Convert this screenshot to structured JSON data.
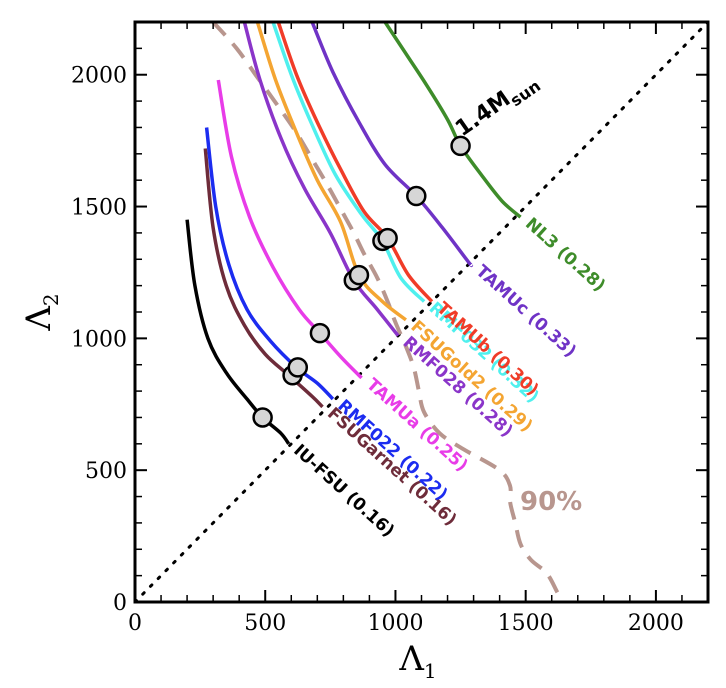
{
  "chart_data": {
    "type": "line",
    "xlabel": "Λ",
    "xlabel_sub": "1",
    "ylabel": "Λ",
    "ylabel_sub": "2",
    "xlim": [
      0,
      2200
    ],
    "ylim": [
      0,
      2200
    ],
    "x_ticks": [
      0,
      500,
      1000,
      1500,
      2000
    ],
    "y_ticks": [
      0,
      500,
      1000,
      1500,
      2000
    ],
    "annotation_mass": "1.4M",
    "annotation_mass_sub": "sun",
    "annotation_credible": "90%",
    "credible_color": "#b8968e",
    "diagonal": [
      [
        0,
        0
      ],
      [
        2200,
        2200
      ]
    ],
    "credible_region": [
      [
        300,
        2200
      ],
      [
        390,
        2100
      ],
      [
        470,
        1990
      ],
      [
        550,
        1880
      ],
      [
        620,
        1780
      ],
      [
        680,
        1680
      ],
      [
        740,
        1580
      ],
      [
        790,
        1490
      ],
      [
        840,
        1400
      ],
      [
        880,
        1320
      ],
      [
        930,
        1230
      ],
      [
        970,
        1140
      ],
      [
        1000,
        1060
      ],
      [
        1040,
        970
      ],
      [
        1070,
        890
      ],
      [
        1090,
        800
      ],
      [
        1110,
        720
      ],
      [
        1170,
        640
      ],
      [
        1260,
        580
      ],
      [
        1400,
        500
      ],
      [
        1440,
        440
      ],
      [
        1440,
        380
      ],
      [
        1460,
        300
      ],
      [
        1480,
        220
      ],
      [
        1520,
        160
      ],
      [
        1580,
        110
      ],
      [
        1620,
        40
      ],
      [
        1640,
        0
      ]
    ],
    "series": [
      {
        "name": "IU-FSU",
        "label": "IU-FSU (0.16)",
        "color": "#000000",
        "points": [
          [
            200,
            1450
          ],
          [
            230,
            1200
          ],
          [
            280,
            1000
          ],
          [
            350,
            870
          ],
          [
            430,
            770
          ],
          [
            490,
            700
          ],
          [
            560,
            640
          ],
          [
            590,
            600
          ]
        ],
        "marker": [
          490,
          700
        ]
      },
      {
        "name": "FSUGarnet",
        "label": "FSUGarnet (0.16)",
        "color": "#6e2c3a",
        "points": [
          [
            270,
            1720
          ],
          [
            300,
            1420
          ],
          [
            350,
            1200
          ],
          [
            420,
            1050
          ],
          [
            500,
            940
          ],
          [
            590,
            860
          ],
          [
            680,
            780
          ],
          [
            720,
            740
          ]
        ],
        "marker": [
          605,
          860
        ]
      },
      {
        "name": "RMF022",
        "label": "RMF022 (0.22)",
        "color": "#1c2cf0",
        "points": [
          [
            275,
            1800
          ],
          [
            310,
            1500
          ],
          [
            360,
            1280
          ],
          [
            430,
            1110
          ],
          [
            520,
            990
          ],
          [
            620,
            890
          ],
          [
            700,
            830
          ],
          [
            760,
            770
          ]
        ],
        "marker": [
          625,
          890
        ]
      },
      {
        "name": "TAMUa",
        "label": "TAMUa (0.25)",
        "color": "#e83ce8",
        "points": [
          [
            320,
            1980
          ],
          [
            370,
            1690
          ],
          [
            440,
            1460
          ],
          [
            530,
            1270
          ],
          [
            630,
            1110
          ],
          [
            710,
            1020
          ],
          [
            790,
            930
          ],
          [
            870,
            850
          ]
        ],
        "marker": [
          710,
          1020
        ]
      },
      {
        "name": "RMF028",
        "label": "RMF028 (0.28)",
        "color": "#8a35c9",
        "points": [
          [
            420,
            2200
          ],
          [
            480,
            1980
          ],
          [
            560,
            1760
          ],
          [
            650,
            1570
          ],
          [
            750,
            1400
          ],
          [
            840,
            1220
          ],
          [
            930,
            1110
          ],
          [
            1010,
            1010
          ]
        ],
        "marker": [
          840,
          1220
        ]
      },
      {
        "name": "FSUGold2",
        "label": "FSUGold2 (0.29)",
        "color": "#f4a532",
        "points": [
          [
            470,
            2200
          ],
          [
            540,
            1980
          ],
          [
            620,
            1780
          ],
          [
            700,
            1600
          ],
          [
            790,
            1440
          ],
          [
            860,
            1240
          ],
          [
            950,
            1140
          ],
          [
            1040,
            1070
          ]
        ],
        "marker": [
          860,
          1240
        ]
      },
      {
        "name": "RMF032",
        "label": "RMF032 (0.32)",
        "color": "#4ff0ee",
        "points": [
          [
            530,
            2200
          ],
          [
            600,
            2000
          ],
          [
            680,
            1810
          ],
          [
            770,
            1620
          ],
          [
            870,
            1470
          ],
          [
            950,
            1370
          ],
          [
            1020,
            1230
          ],
          [
            1110,
            1140
          ]
        ],
        "marker": [
          950,
          1370
        ]
      },
      {
        "name": "TAMUb",
        "label": "TAMUb (0.30)",
        "color": "#f03c28",
        "points": [
          [
            550,
            2200
          ],
          [
            620,
            2000
          ],
          [
            700,
            1820
          ],
          [
            790,
            1640
          ],
          [
            880,
            1480
          ],
          [
            970,
            1380
          ],
          [
            1050,
            1240
          ],
          [
            1140,
            1140
          ]
        ],
        "marker": [
          970,
          1380
        ]
      },
      {
        "name": "TAMUc",
        "label": "TAMUc (0.33)",
        "color": "#6f33c6",
        "points": [
          [
            680,
            2200
          ],
          [
            760,
            2010
          ],
          [
            860,
            1820
          ],
          [
            960,
            1660
          ],
          [
            1080,
            1540
          ],
          [
            1180,
            1420
          ],
          [
            1280,
            1290
          ],
          [
            1290,
            1280
          ]
        ],
        "marker": [
          1080,
          1540
        ]
      },
      {
        "name": "NL3",
        "label": "NL3 (0.28)",
        "color": "#3e8c2a",
        "points": [
          [
            960,
            2200
          ],
          [
            1040,
            2080
          ],
          [
            1120,
            1960
          ],
          [
            1200,
            1830
          ],
          [
            1250,
            1730
          ],
          [
            1330,
            1620
          ],
          [
            1410,
            1520
          ],
          [
            1480,
            1460
          ]
        ],
        "marker": [
          1250,
          1730
        ]
      }
    ]
  }
}
